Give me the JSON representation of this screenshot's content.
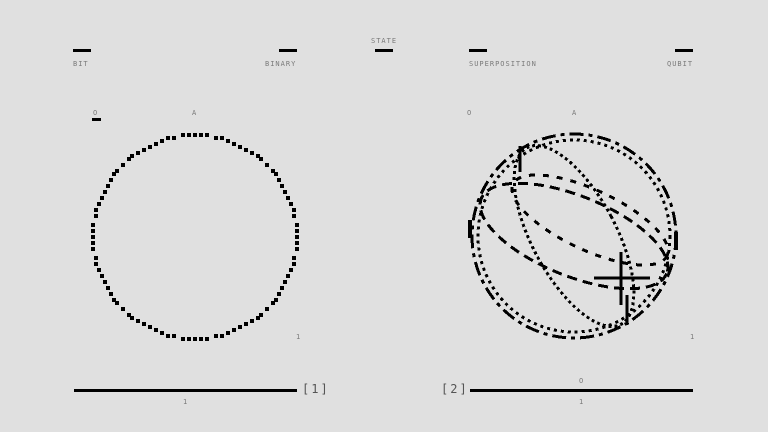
{
  "header": {
    "left_left": "BIT",
    "left_right": "BINARY",
    "center": "STATE",
    "right_left": "SUPERPOSITION",
    "right_right": "QUBIT"
  },
  "panel1": {
    "label_o": "O",
    "label_a": "A",
    "label_1": "1",
    "bar_label": "1",
    "index": "[1]"
  },
  "panel2": {
    "label_o": "O",
    "label_a": "A",
    "label_1": "1",
    "bar_top_label": "O",
    "bar_label": "1",
    "index": "[2]"
  },
  "colors": {
    "background": "#e0e0e0",
    "ink": "#000000",
    "text": "#7a7a7a"
  }
}
